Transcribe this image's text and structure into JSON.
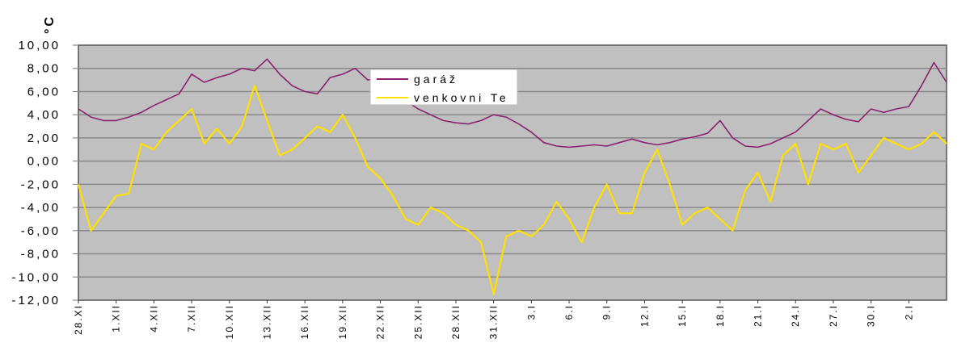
{
  "chart_data": {
    "type": "line",
    "title": "",
    "ylabel": "°C",
    "xlabel": "",
    "ylim": [
      -12,
      10
    ],
    "yticks": [
      "10,00",
      "8,00",
      "6,00",
      "4,00",
      "2,00",
      "0,00",
      "-2,00",
      "-4,00",
      "-6,00",
      "-8,00",
      "-10,00",
      "-12,00"
    ],
    "ytick_values": [
      10,
      8,
      6,
      4,
      2,
      0,
      -2,
      -4,
      -6,
      -8,
      -10,
      -12
    ],
    "grid": true,
    "legend_position": "top-center",
    "plot_bg": "#c0c0c0",
    "xtick_labels": [
      "28.XI",
      "1.XII",
      "4.XII",
      "7.XII",
      "10.XII",
      "13.XII",
      "16.XII",
      "19.XII",
      "22.XII",
      "25.XII",
      "28.XII",
      "31.XII",
      "3.I",
      "6.I",
      "9.I",
      "12.I",
      "15.I",
      "18.I",
      "21.I",
      "24.I",
      "27.I",
      "30.I",
      "2.I"
    ],
    "x_days": [
      0,
      1,
      2,
      3,
      4,
      5,
      6,
      7,
      8,
      9,
      10,
      11,
      12,
      13,
      14,
      15,
      16,
      17,
      18,
      19,
      20,
      21,
      22,
      23,
      24,
      25,
      26,
      27,
      28,
      29,
      30,
      31,
      32,
      33,
      34,
      35,
      36,
      37,
      38,
      39,
      40,
      41,
      42,
      43,
      44,
      45,
      46,
      47,
      48,
      49,
      50,
      51,
      52,
      53,
      54,
      55,
      56,
      57,
      58,
      59,
      60,
      61,
      62,
      63,
      64,
      65,
      66,
      67,
      68,
      69
    ],
    "series": [
      {
        "name": "garáž",
        "color": "#8b2170",
        "values": [
          4.5,
          3.8,
          3.5,
          3.5,
          3.8,
          4.2,
          4.8,
          5.3,
          5.8,
          7.5,
          6.8,
          7.2,
          7.5,
          8.0,
          7.8,
          8.8,
          7.5,
          6.5,
          6.0,
          5.8,
          7.2,
          7.5,
          8.0,
          7.0,
          7.2,
          6.0,
          5.2,
          4.5,
          4.0,
          3.5,
          3.3,
          3.2,
          3.5,
          4.0,
          3.8,
          3.2,
          2.5,
          1.6,
          1.3,
          1.2,
          1.3,
          1.4,
          1.3,
          1.6,
          1.9,
          1.6,
          1.4,
          1.6,
          1.9,
          2.1,
          2.4,
          3.5,
          2.0,
          1.3,
          1.2,
          1.5,
          2.0,
          2.5,
          3.5,
          4.5,
          4.0,
          3.6,
          3.4,
          4.5,
          4.2,
          4.5,
          4.7,
          6.5,
          8.5,
          6.8
        ]
      },
      {
        "name": "venkovni Te",
        "color": "#ffe000",
        "values": [
          -2.0,
          -6.0,
          -4.5,
          -3.0,
          -2.8,
          1.5,
          1.0,
          2.5,
          3.5,
          4.5,
          1.5,
          2.8,
          1.5,
          3.0,
          6.5,
          3.5,
          0.5,
          1.0,
          2.0,
          3.0,
          2.5,
          4.0,
          2.0,
          -0.5,
          -1.5,
          -3.0,
          -5.0,
          -5.5,
          -4.0,
          -4.5,
          -5.5,
          -6.0,
          -7.0,
          -11.5,
          -6.5,
          -6.0,
          -6.5,
          -5.5,
          -3.5,
          -5.0,
          -7.0,
          -4.0,
          -2.0,
          -4.5,
          -4.5,
          -1.0,
          1.0,
          -2.0,
          -5.5,
          -4.5,
          -4.0,
          -5.0,
          -6.0,
          -2.5,
          -1.0,
          -3.5,
          0.5,
          1.5,
          -2.0,
          1.5,
          1.0,
          1.5,
          -1.0,
          0.5,
          2.0,
          1.5,
          1.0,
          1.5,
          2.5,
          1.5
        ]
      }
    ]
  },
  "legend": {
    "items": [
      {
        "label": "garáž",
        "color": "#8b2170"
      },
      {
        "label": "venkovni Te",
        "color": "#ffe000"
      }
    ]
  },
  "axis": {
    "unit_label": "°C"
  }
}
